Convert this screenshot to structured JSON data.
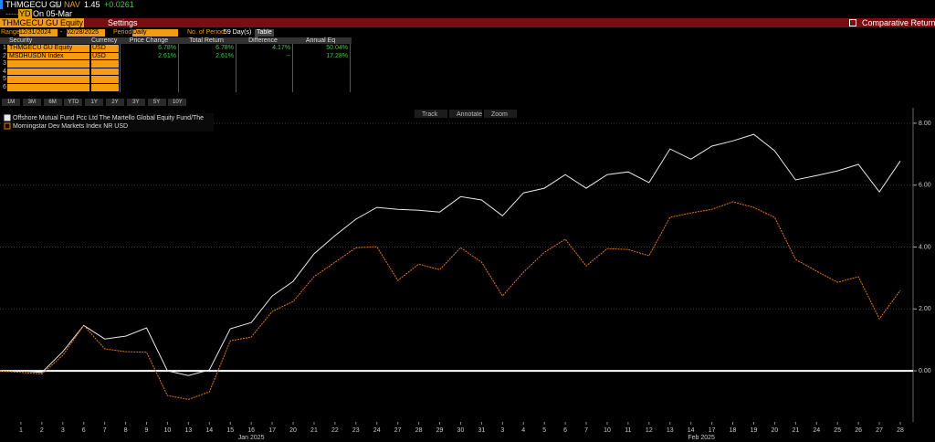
{
  "header": {
    "ticker": "THMGECU GU",
    "currency": "$",
    "nav_label": "NAV",
    "nav": "1.45",
    "change": "+0.0261",
    "dashes": "-----",
    "badge": "YD",
    "date": "On 05-Mar"
  },
  "toolbar": {
    "security": "THMGECU GU Equity",
    "settings": "Settings",
    "function": "Comparative Returns"
  },
  "controls": {
    "range_label": "Range",
    "start": "12/31/2024",
    "separator": "-",
    "end": "02/28/2025",
    "period_label": "Period",
    "period": "Daily",
    "periods_label": "No. of Period",
    "periods": "59 Day(s)",
    "view": "Table"
  },
  "table": {
    "columns": [
      "Security",
      "Currency",
      "Price Change",
      "Total Return",
      "Difference",
      "Annual Eq"
    ],
    "rows": [
      [
        "1",
        "THMGECU GU Equity",
        "USD",
        "6.78%",
        "6.78%",
        "4.17%",
        "50.04%"
      ],
      [
        "2",
        "MSDHUSDN Index",
        "USD",
        "2.61%",
        "2.61%",
        "--",
        "17.28%"
      ],
      [
        "3"
      ],
      [
        "4"
      ],
      [
        "5"
      ],
      [
        "6"
      ]
    ]
  },
  "range_buttons": [
    "1M",
    "3M",
    "6M",
    "YTD",
    "1Y",
    "2Y",
    "3Y",
    "5Y",
    "10Y"
  ],
  "chart_tools": [
    "Track",
    "Annotate",
    "Zoom"
  ],
  "chart_data": {
    "type": "line",
    "categories": [
      null,
      1,
      2,
      3,
      6,
      7,
      8,
      9,
      10,
      13,
      14,
      15,
      16,
      17,
      20,
      21,
      22,
      23,
      24,
      27,
      28,
      29,
      30,
      31,
      3,
      4,
      5,
      6,
      7,
      10,
      11,
      12,
      13,
      14,
      17,
      18,
      19,
      20,
      21,
      24,
      25,
      26,
      27,
      28
    ],
    "month_labels": [
      "Jan 2025",
      "Feb 2025"
    ],
    "series": [
      {
        "name": "Offshore Mutual Fund Pcc Ltd The Martello Global Equity Fund/The",
        "color": "#e8e8e8",
        "values": [
          0,
          0,
          -0.05,
          0.62,
          1.47,
          1.03,
          1.12,
          1.39,
          0,
          -0.15,
          0.03,
          1.36,
          1.56,
          2.42,
          2.89,
          3.78,
          4.37,
          4.9,
          5.28,
          5.22,
          5.19,
          5.13,
          5.63,
          5.52,
          5.01,
          5.75,
          5.9,
          6.34,
          5.9,
          6.34,
          6.43,
          6.08,
          7.17,
          6.84,
          7.26,
          7.43,
          7.64,
          7.11,
          6.17,
          6.31,
          6.46,
          6.67,
          5.78,
          6.78
        ]
      },
      {
        "name": "Morningstar Dev Markets Index NR USD",
        "color": "#e8760a",
        "values": [
          0,
          -0.05,
          -0.1,
          0.5,
          1.47,
          0.71,
          0.62,
          0.6,
          -0.8,
          -0.92,
          -0.68,
          0.97,
          1.09,
          1.92,
          2.24,
          3.04,
          3.51,
          3.98,
          4.01,
          2.92,
          3.45,
          3.27,
          3.98,
          3.51,
          2.42,
          3.19,
          3.83,
          4.25,
          3.39,
          3.95,
          3.92,
          3.72,
          4.96,
          5.1,
          5.22,
          5.46,
          5.28,
          4.96,
          3.6,
          3.22,
          2.86,
          3.04,
          1.68,
          2.6
        ]
      }
    ],
    "ylim": [
      -1.65,
      8.5
    ],
    "yticks": [
      {
        "value": 0,
        "label": "0.00"
      },
      {
        "value": 2,
        "label": "2.00"
      },
      {
        "value": 4,
        "label": "4.00"
      },
      {
        "value": 6,
        "label": "6.00"
      },
      {
        "value": 8,
        "label": "8.00"
      }
    ],
    "grid": true
  }
}
